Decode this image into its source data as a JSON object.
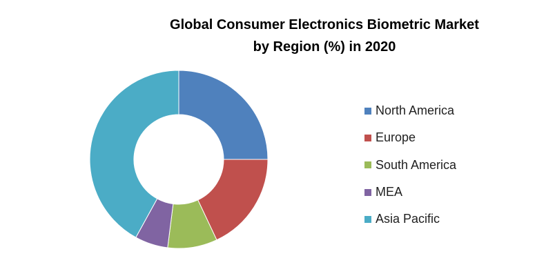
{
  "chart_data": {
    "type": "pie",
    "variant": "donut",
    "title_lines": [
      "Global Consumer Electronics Biometric Market",
      "by Region (%) in 2020"
    ],
    "categories": [
      "North America",
      "Europe",
      "South America",
      "MEA",
      "Asia Pacific"
    ],
    "values": [
      25,
      18,
      9,
      6,
      42
    ],
    "unit": "%",
    "colors": [
      "#4F81BD",
      "#C0504D",
      "#9BBB59",
      "#8064A2",
      "#4BACC6"
    ],
    "legend_position": "right",
    "start_angle": "12 o'clock, clockwise"
  }
}
